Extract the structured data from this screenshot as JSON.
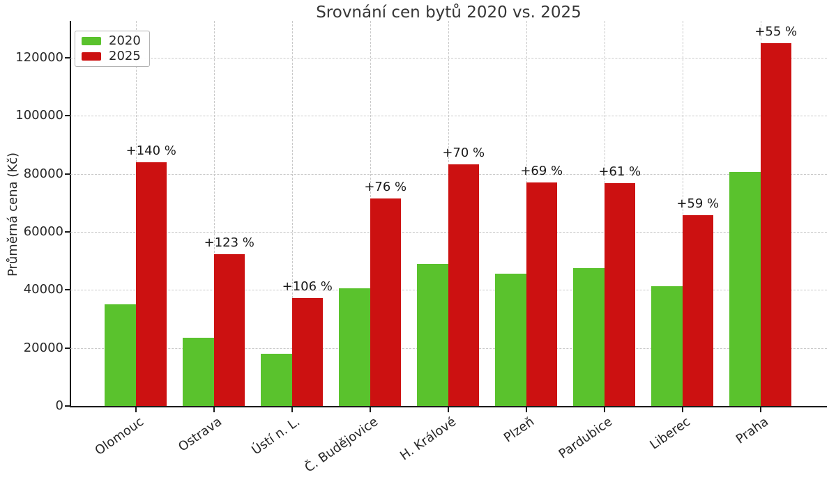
{
  "chart_data": {
    "type": "bar",
    "title": "Srovnání cen bytů 2020 vs. 2025",
    "ylabel": "Průměrná cena (Kč)",
    "xlabel": "",
    "categories": [
      "Olomouc",
      "Ostrava",
      "Ústí n. L.",
      "Č. Budějovice",
      "H. Králové",
      "Plzeň",
      "Pardubice",
      "Liberec",
      "Praha"
    ],
    "series": [
      {
        "name": "2020",
        "color": "#5ac22d",
        "values": [
          35000,
          23500,
          18000,
          40600,
          49000,
          45600,
          47600,
          41300,
          80700
        ]
      },
      {
        "name": "2025",
        "color": "#cc1111",
        "values": [
          84000,
          52400,
          37100,
          71500,
          83300,
          77100,
          76700,
          65700,
          125000
        ]
      }
    ],
    "annotations": [
      "+140 %",
      "+123 %",
      "+106 %",
      "+76 %",
      "+70 %",
      "+69 %",
      "+61 %",
      "+59 %",
      "+55 %"
    ],
    "yticks": [
      0,
      20000,
      40000,
      60000,
      80000,
      100000,
      120000
    ],
    "ylim": [
      0,
      132750
    ],
    "grid": true,
    "grid_style": "dashed",
    "legend_position": "upper left",
    "background": "#ffffff"
  }
}
